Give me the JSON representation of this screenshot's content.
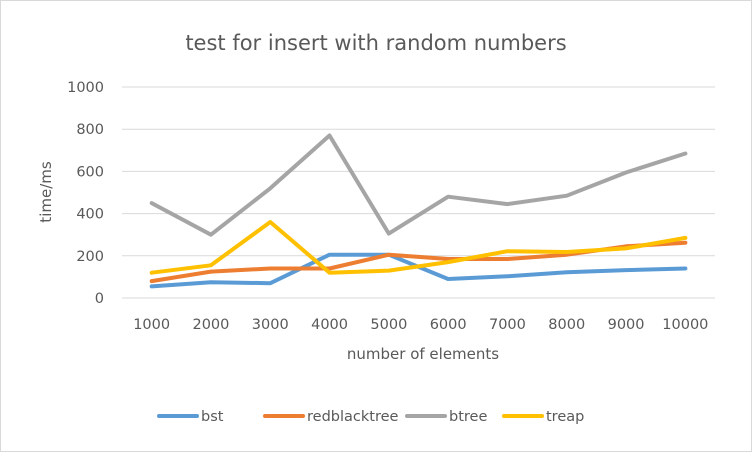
{
  "chart_data": {
    "type": "line",
    "title": "test for insert with random numbers",
    "xlabel": "number of elements",
    "ylabel": "time/ms",
    "categories": [
      "1000",
      "2000",
      "3000",
      "4000",
      "5000",
      "6000",
      "7000",
      "8000",
      "9000",
      "10000"
    ],
    "ylim": [
      0,
      1000
    ],
    "yticks": [
      0,
      200,
      400,
      600,
      800,
      1000
    ],
    "grid": "horizontal",
    "legend": "bottom",
    "series": [
      {
        "name": "bst",
        "color": "#5b9bd5",
        "values": [
          55,
          75,
          70,
          205,
          205,
          90,
          103,
          122,
          132,
          140
        ]
      },
      {
        "name": "redblacktree",
        "color": "#ed7d31",
        "values": [
          80,
          125,
          140,
          140,
          205,
          185,
          185,
          205,
          245,
          262
        ]
      },
      {
        "name": "btree",
        "color": "#a5a5a5",
        "values": [
          450,
          300,
          520,
          770,
          305,
          480,
          445,
          485,
          595,
          685
        ]
      },
      {
        "name": "treap",
        "color": "#ffc000",
        "values": [
          120,
          155,
          360,
          120,
          130,
          170,
          222,
          218,
          235,
          285
        ]
      }
    ]
  }
}
